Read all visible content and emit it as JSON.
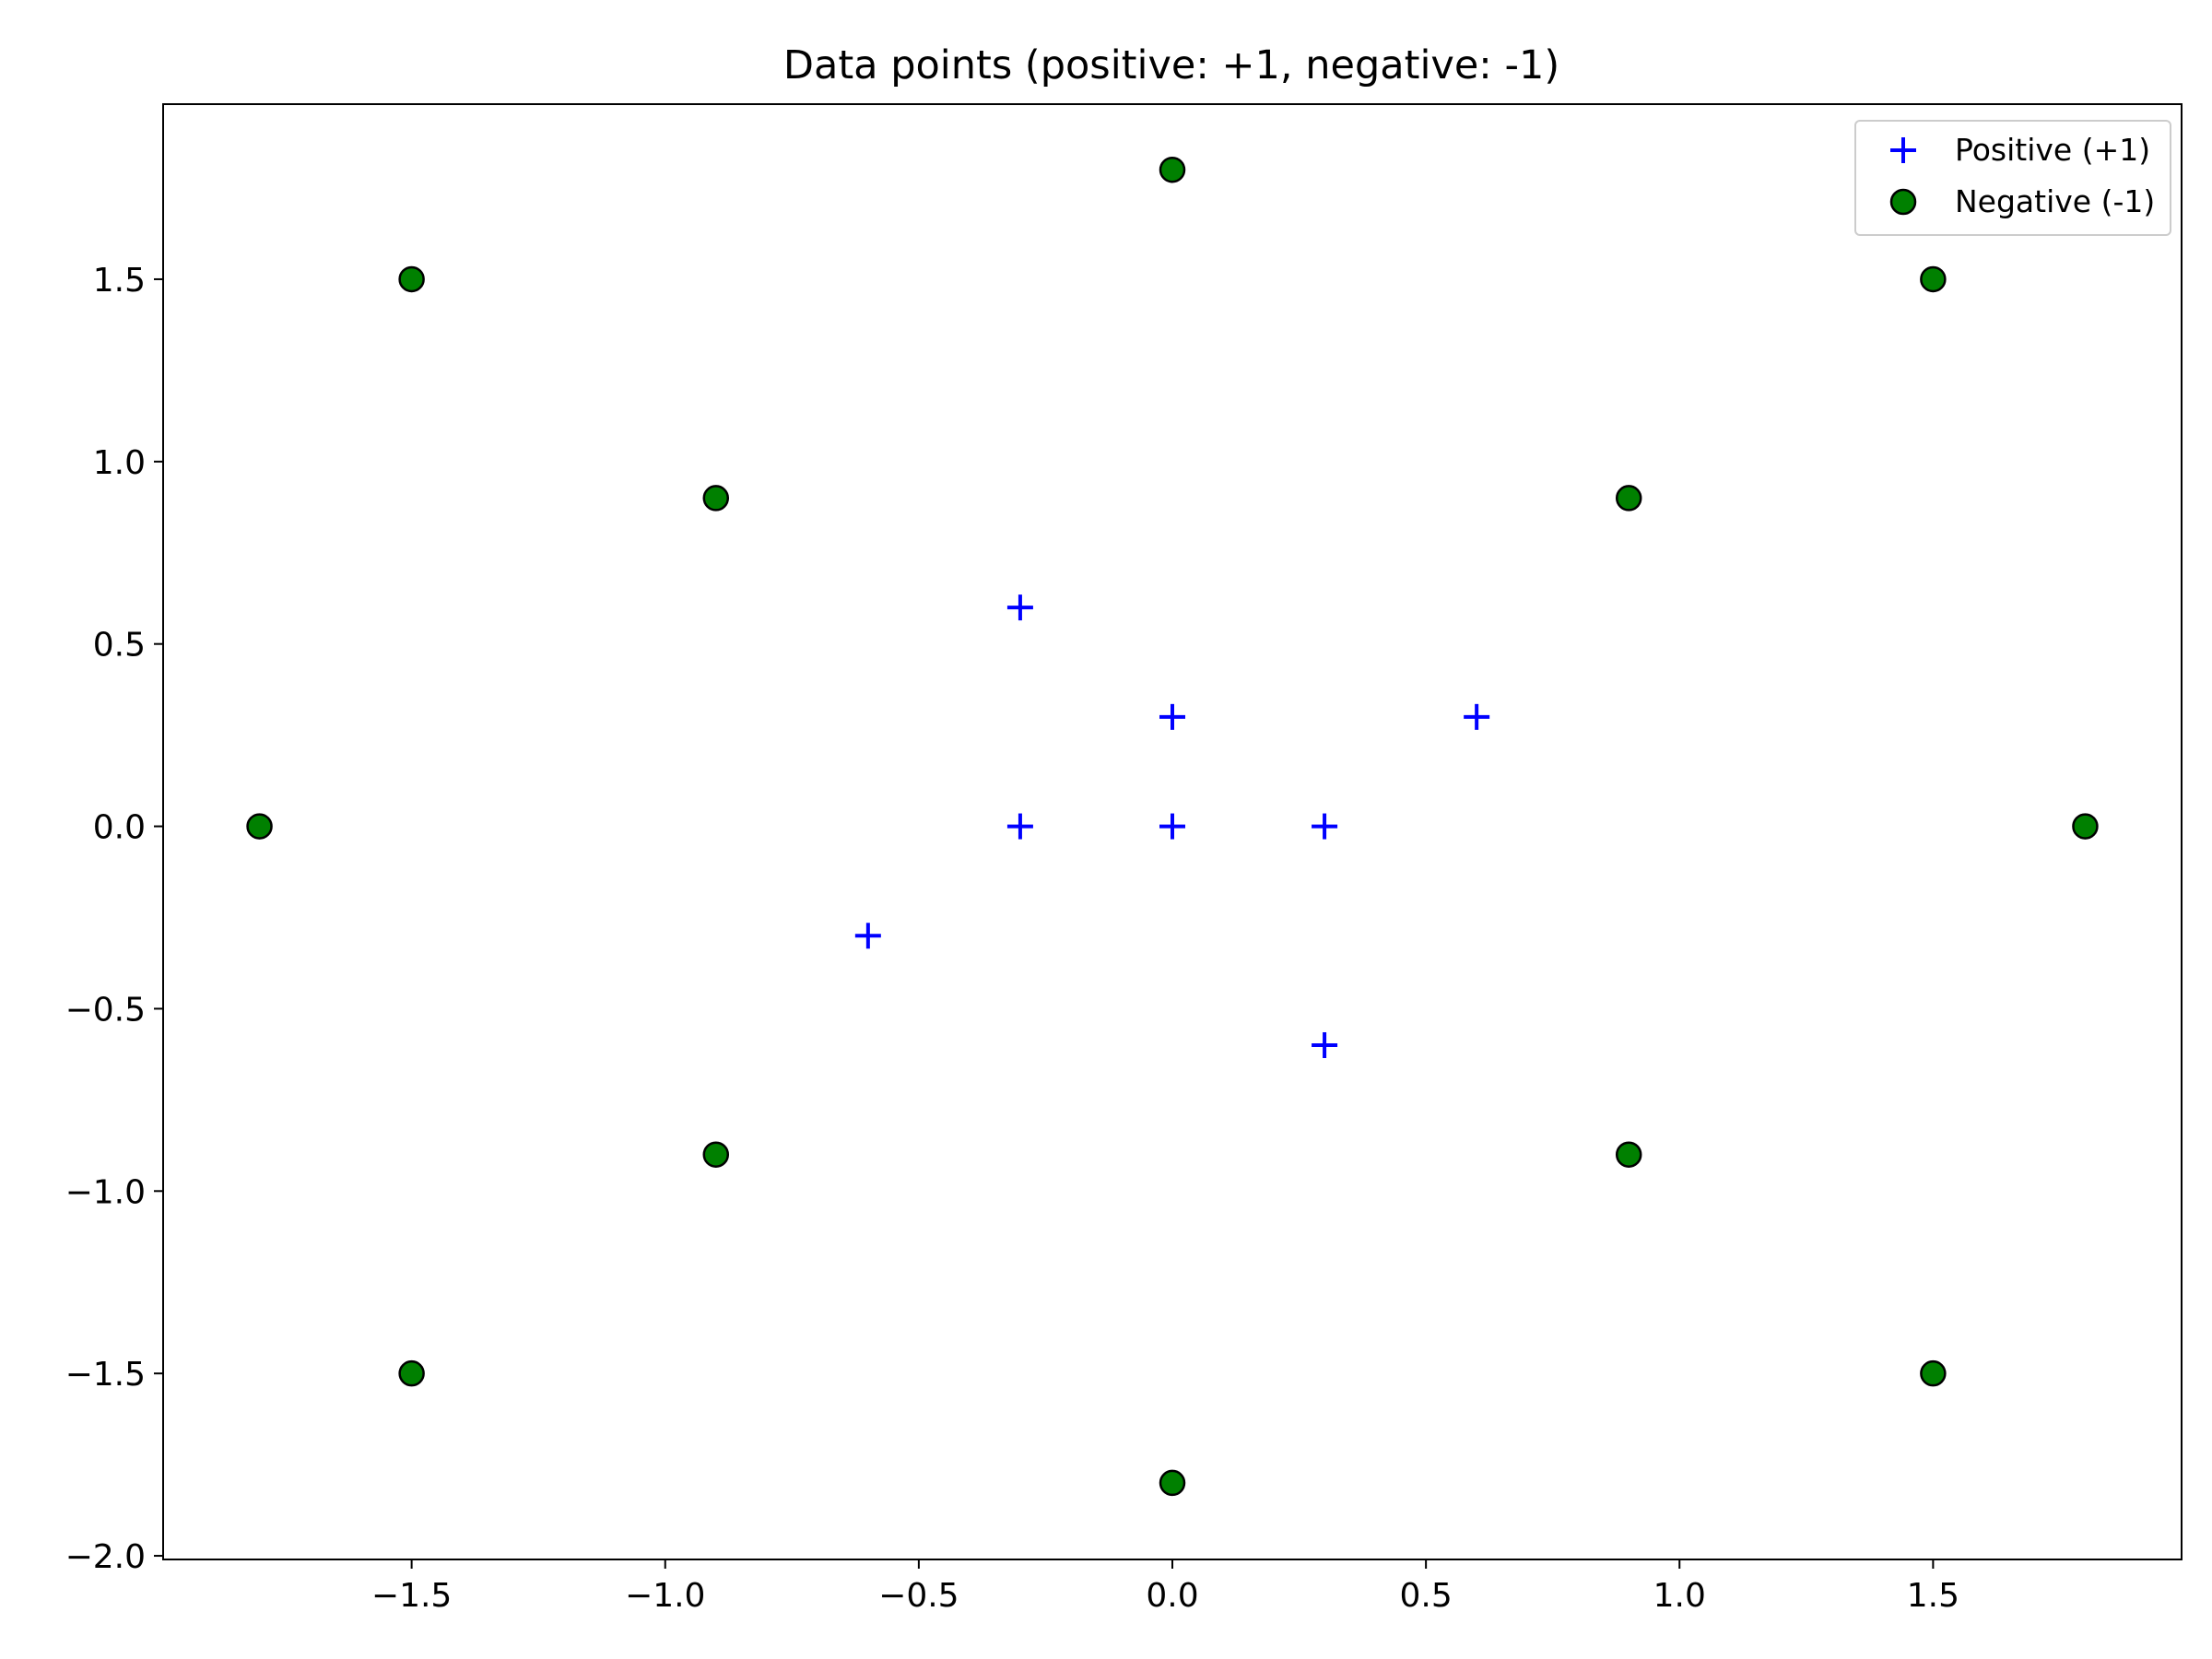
{
  "chart_data": {
    "type": "scatter",
    "title": "Data points (positive: +1, negative: -1)",
    "xlabel": "",
    "ylabel": "",
    "xlim": [
      -1.99,
      1.99
    ],
    "ylim": [
      -2.01,
      1.98
    ],
    "x_ticks": [
      {
        "value": -1.5,
        "label": "−1.5"
      },
      {
        "value": -1.0,
        "label": "−1.0"
      },
      {
        "value": -0.5,
        "label": "−0.5"
      },
      {
        "value": 0.0,
        "label": "0.0"
      },
      {
        "value": 0.5,
        "label": "0.5"
      },
      {
        "value": 1.0,
        "label": "1.0"
      },
      {
        "value": 1.5,
        "label": "1.5"
      }
    ],
    "y_ticks": [
      {
        "value": -2.0,
        "label": "−2.0"
      },
      {
        "value": -1.5,
        "label": "−1.5"
      },
      {
        "value": -1.0,
        "label": "−1.0"
      },
      {
        "value": -0.5,
        "label": "−0.5"
      },
      {
        "value": 0.0,
        "label": "0.0"
      },
      {
        "value": 0.5,
        "label": "0.5"
      },
      {
        "value": 1.0,
        "label": "1.0"
      },
      {
        "value": 1.5,
        "label": "1.5"
      }
    ],
    "grid": false,
    "legend_position": "top-right",
    "series": [
      {
        "name": "Positive (+1)",
        "marker": "plus",
        "color": "#0000ff",
        "points": [
          {
            "x": -0.3,
            "y": 0.6
          },
          {
            "x": 0.0,
            "y": 0.3
          },
          {
            "x": 0.6,
            "y": 0.3
          },
          {
            "x": -0.3,
            "y": 0.0
          },
          {
            "x": 0.0,
            "y": 0.0
          },
          {
            "x": 0.3,
            "y": 0.0
          },
          {
            "x": -0.6,
            "y": -0.3
          },
          {
            "x": 0.3,
            "y": -0.6
          }
        ]
      },
      {
        "name": "Negative (-1)",
        "marker": "circle",
        "color": "#008000",
        "edge_color": "#000000",
        "points": [
          {
            "x": 0.0,
            "y": 1.8
          },
          {
            "x": -1.5,
            "y": 1.5
          },
          {
            "x": 1.5,
            "y": 1.5
          },
          {
            "x": -0.9,
            "y": 0.9
          },
          {
            "x": 0.9,
            "y": 0.9
          },
          {
            "x": -1.8,
            "y": 0.0
          },
          {
            "x": 1.8,
            "y": 0.0
          },
          {
            "x": -0.9,
            "y": -0.9
          },
          {
            "x": 0.9,
            "y": -0.9
          },
          {
            "x": -1.5,
            "y": -1.5
          },
          {
            "x": 1.5,
            "y": -1.5
          },
          {
            "x": 0.0,
            "y": -1.8
          }
        ]
      }
    ]
  }
}
